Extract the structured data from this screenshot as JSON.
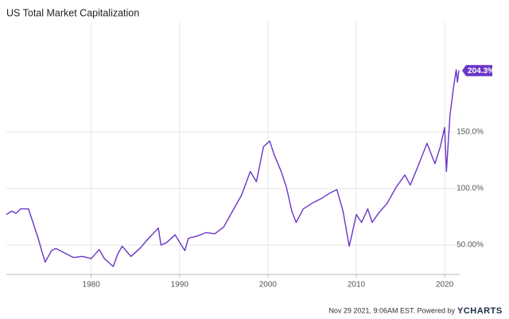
{
  "chart_data": {
    "type": "line",
    "title": "US Total Market Capitalization",
    "x": [
      1970.4,
      1971,
      1971.5,
      1972,
      1972.9,
      1973.5,
      1974,
      1974.5,
      1974.8,
      1975.5,
      1976,
      1977,
      1978,
      1979,
      1980,
      1980.9,
      1981.5,
      1982.5,
      1983,
      1983.5,
      1984.5,
      1985.5,
      1986.5,
      1987.6,
      1987.9,
      1988.5,
      1989.5,
      1990.6,
      1991,
      1992,
      1993,
      1994,
      1995,
      1996,
      1997,
      1998,
      1998.7,
      1999.5,
      2000.2,
      2000.7,
      2001.5,
      2002.1,
      2002.7,
      2003.2,
      2004,
      2005,
      2006,
      2007,
      2007.8,
      2008.5,
      2009.2,
      2009.5,
      2010,
      2010.6,
      2011.3,
      2011.8,
      2012.5,
      2013.5,
      2014.5,
      2015.5,
      2016.1,
      2017,
      2018,
      2018.9,
      2019.5,
      2020.0,
      2020.2,
      2020.6,
      2021,
      2021.3,
      2021.45,
      2021.6
    ],
    "series": [
      {
        "name": "US Total Market Capitalization",
        "color": "#6a35c7",
        "values": [
          77,
          80,
          78,
          82,
          82,
          68,
          56,
          42,
          35,
          45,
          47,
          43,
          39,
          40,
          38,
          46,
          38,
          31,
          42,
          49,
          40,
          47,
          56,
          65,
          50,
          52,
          59,
          45,
          56,
          58,
          61,
          60,
          66,
          80,
          94,
          115,
          106,
          137,
          142,
          130,
          115,
          101,
          80,
          70,
          82,
          87,
          91,
          96,
          99,
          80,
          49,
          59,
          77,
          70,
          82,
          70,
          78,
          87,
          101,
          112,
          103,
          120,
          140,
          122,
          137,
          154,
          115,
          165,
          189,
          205,
          194,
          204.3
        ],
        "value_labels": [
          null,
          null,
          null,
          null,
          null,
          null,
          null,
          null,
          null,
          null,
          null,
          null,
          null,
          null,
          null,
          null,
          null,
          null,
          null,
          null,
          null,
          null,
          null,
          null,
          null,
          null,
          null,
          null,
          null,
          null,
          null,
          null,
          null,
          null,
          null,
          null,
          null,
          null,
          null,
          null,
          null,
          null,
          null,
          null,
          null,
          null,
          null,
          null,
          null,
          null,
          null,
          null,
          null,
          null,
          null,
          null,
          null,
          null,
          null,
          null,
          null,
          null,
          null,
          null,
          null,
          null,
          null,
          null,
          null,
          null,
          null,
          "204.3%"
        ]
      }
    ],
    "xlim": [
      1970.4,
      2021.7
    ],
    "xticks": [
      1980,
      1990,
      2000,
      2010,
      2020
    ],
    "ylim": [
      24,
      247
    ],
    "yticks": [
      {
        "value": 50,
        "label": "50.00%"
      },
      {
        "value": 100,
        "label": "100.0%"
      },
      {
        "value": 150,
        "label": "150.0%"
      }
    ],
    "grid": true
  },
  "footer": {
    "text": "Nov 29 2021, 9:06AM EST. Powered by",
    "brand": "YCHARTS"
  }
}
